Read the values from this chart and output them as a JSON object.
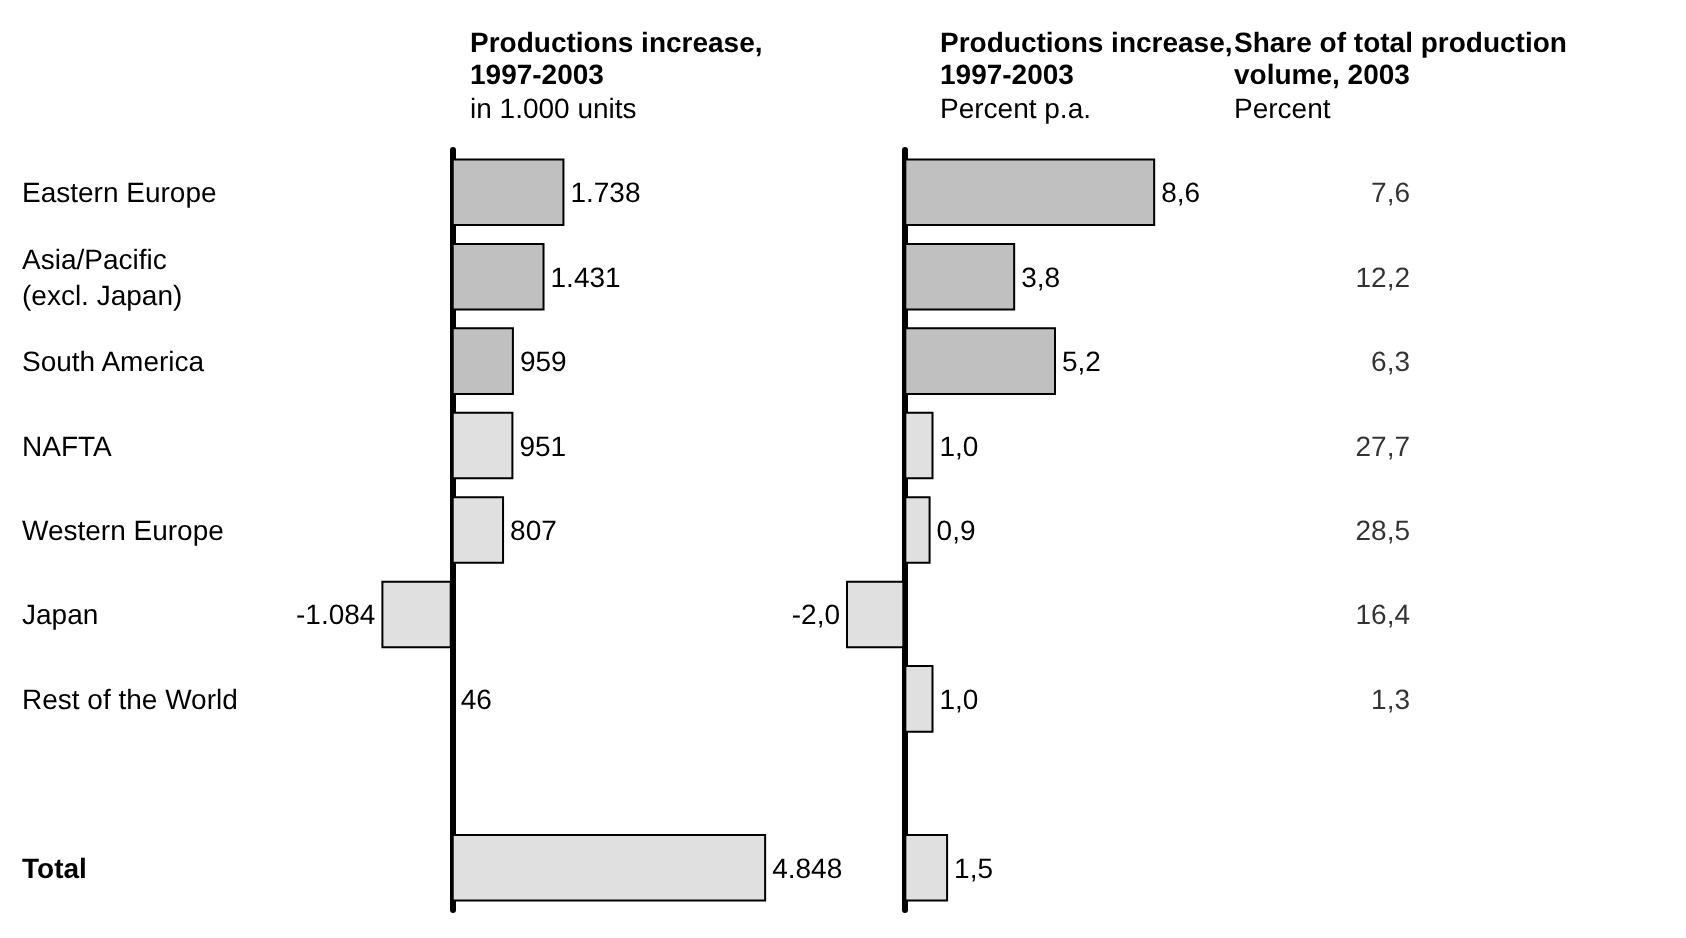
{
  "chart_data": [
    {
      "type": "bar",
      "orientation": "horizontal",
      "title": "Productions increase, 1997-2003",
      "subtitle": "in 1.000 units",
      "categories": [
        "Eastern Europe",
        "Asia/Pacific\n(excl. Japan)",
        "South America",
        "NAFTA",
        "Western Europe",
        "Japan",
        "Rest of the World",
        null,
        "Total"
      ],
      "values": [
        1738,
        1431,
        959,
        951,
        807,
        -1084,
        46,
        null,
        4848
      ],
      "value_labels": [
        "1.738",
        "1.431",
        "959",
        "951",
        "807",
        "-1.084",
        "46",
        null,
        "4.848"
      ],
      "colors": [
        "#c0c0c0",
        "#c0c0c0",
        "#c0c0c0",
        "#e0e0e0",
        "#e0e0e0",
        "#e0e0e0",
        "#e0e0e0",
        "#e0e0e0",
        "#e0e0e0"
      ],
      "tick_labels": "y"
    },
    {
      "type": "bar",
      "orientation": "horizontal",
      "title": "Productions increase, 1997-2003",
      "subtitle": "Percent p.a.",
      "categories": [
        null,
        null,
        null,
        null,
        null,
        null,
        null,
        null,
        null
      ],
      "values": [
        8.6,
        3.8,
        5.2,
        1.0,
        0.9,
        -2.0,
        1.0,
        null,
        1.5
      ],
      "value_labels": [
        "8,6",
        "3,8",
        "5,2",
        "1,0",
        "0,9",
        "-2,0",
        "1,0",
        null,
        "1,5"
      ],
      "colors": [
        "#c0c0c0",
        "#c0c0c0",
        "#c0c0c0",
        "#e0e0e0",
        "#e0e0e0",
        "#e0e0e0",
        "#e0e0e0",
        "#e0e0e0",
        "#e0e0e0"
      ]
    },
    {
      "type": "other",
      "title": "Share of total production volume, 2003",
      "subtitle": "Percent",
      "values": [
        7.6,
        12.2,
        6.3,
        27.7,
        28.5,
        16.4,
        1.3,
        null,
        null
      ],
      "value_labels": [
        "7,6",
        "12,2",
        "6,3",
        "27,7",
        "28,5",
        "16,4",
        "1,3",
        null,
        null
      ]
    }
  ]
}
